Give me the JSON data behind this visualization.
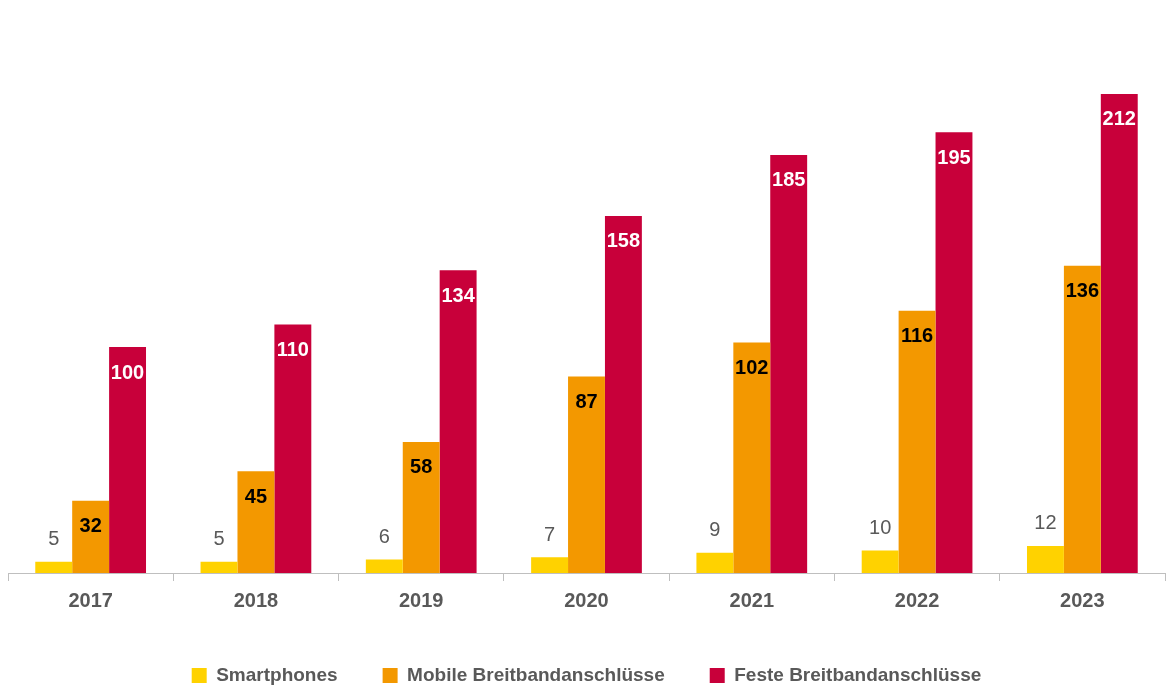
{
  "chart_data": {
    "type": "bar",
    "categories": [
      "2017",
      "2018",
      "2019",
      "2020",
      "2021",
      "2022",
      "2023"
    ],
    "series": [
      {
        "name": "Smartphones",
        "color": "#ffd200",
        "values": [
          5,
          5,
          6,
          7,
          9,
          10,
          12
        ]
      },
      {
        "name": "Mobile Breitbandanschlüsse",
        "color": "#f39800",
        "values": [
          32,
          45,
          58,
          87,
          102,
          116,
          136
        ]
      },
      {
        "name": "Feste Breitbandanschlüsse",
        "color": "#c8003a",
        "values": [
          100,
          110,
          134,
          158,
          185,
          195,
          212
        ]
      }
    ],
    "data_labels": true,
    "grid": false,
    "legend": "bottom"
  }
}
